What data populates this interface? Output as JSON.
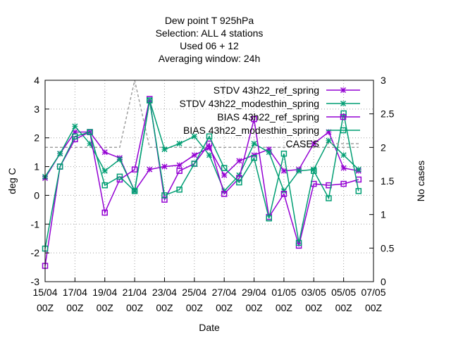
{
  "chart_data": {
    "type": "line",
    "title_lines": [
      "Dew point T 925hPa",
      "Selection: ALL       4 stations",
      "Used  06  + 12",
      "Averaging window: 24h"
    ],
    "xlabel": "Date",
    "ylabel": "deg C",
    "y2label": "No cases",
    "ylim": [
      -3,
      4
    ],
    "y2lim": [
      0,
      3
    ],
    "yticks": [
      "-3",
      "-2",
      "-1",
      "0",
      "1",
      "2",
      "3",
      "4"
    ],
    "y2ticks": [
      "0",
      "0.5",
      "1",
      "1.5",
      "2",
      "2.5",
      "3"
    ],
    "xlim": [
      0,
      22
    ],
    "xticks": [
      {
        "top": "15/04",
        "bottom": "00Z"
      },
      {
        "top": "17/04",
        "bottom": "00Z"
      },
      {
        "top": "19/04",
        "bottom": "00Z"
      },
      {
        "top": "21/04",
        "bottom": "00Z"
      },
      {
        "top": "23/04",
        "bottom": "00Z"
      },
      {
        "top": "25/04",
        "bottom": "00Z"
      },
      {
        "top": "27/04",
        "bottom": "00Z"
      },
      {
        "top": "29/04",
        "bottom": "00Z"
      },
      {
        "top": "01/05",
        "bottom": "00Z"
      },
      {
        "top": "03/05",
        "bottom": "00Z"
      },
      {
        "top": "05/05",
        "bottom": "00Z"
      },
      {
        "top": "07/05",
        "bottom": "00Z"
      }
    ],
    "x": [
      0,
      1,
      2,
      3,
      4,
      5,
      6,
      7,
      8,
      9,
      10,
      11,
      12,
      13,
      14,
      15,
      16,
      17,
      18,
      19,
      20,
      21
    ],
    "legend_position": "top-right",
    "grid": true,
    "series": [
      {
        "name": "STDV 43h22_ref_spring",
        "color": "#9400d3",
        "marker": "x",
        "axis": "y",
        "values": [
          0.6,
          1.45,
          2.2,
          2.2,
          1.5,
          1.3,
          0.15,
          0.9,
          1.0,
          1.05,
          1.4,
          1.65,
          0.7,
          1.2,
          1.4,
          1.6,
          0.85,
          0.9,
          1.8,
          2.2,
          0.95,
          0.85
        ]
      },
      {
        "name": "STDV 43h22_modesthin_spring",
        "color": "#009e73",
        "marker": "x",
        "axis": "y",
        "values": [
          0.65,
          1.45,
          2.4,
          1.8,
          0.85,
          1.25,
          0.15,
          3.3,
          1.6,
          1.8,
          2.05,
          1.4,
          0.15,
          0.7,
          1.8,
          1.5,
          0.15,
          0.85,
          0.9,
          1.9,
          1.4,
          0.9
        ]
      },
      {
        "name": "BIAS 43h22_ref_spring",
        "color": "#9400d3",
        "marker": "square",
        "axis": "y",
        "values": [
          -2.45,
          1.0,
          1.95,
          2.2,
          -0.6,
          0.55,
          0.9,
          3.35,
          -0.15,
          0.85,
          1.1,
          1.8,
          0.05,
          0.6,
          2.65,
          -0.75,
          0.05,
          -1.75,
          0.4,
          0.35,
          0.4,
          0.55
        ]
      },
      {
        "name": "BIAS 43h22_modesthin_spring",
        "color": "#009e73",
        "marker": "square",
        "axis": "y",
        "values": [
          -1.85,
          1.0,
          2.05,
          2.2,
          0.35,
          0.65,
          0.15,
          3.3,
          0.0,
          0.2,
          1.1,
          2.05,
          0.95,
          0.45,
          1.3,
          -0.8,
          1.45,
          -1.65,
          0.85,
          -0.1,
          2.85,
          0.15
        ]
      },
      {
        "name": "CASES",
        "color": "#a0a0a0",
        "marker": "none",
        "axis": "y2",
        "dash": true,
        "values": [
          2,
          2,
          2,
          2,
          2,
          2,
          3,
          2,
          2,
          2,
          2,
          2,
          2,
          2,
          2,
          2,
          2,
          2,
          2,
          2,
          2,
          2
        ]
      }
    ]
  }
}
